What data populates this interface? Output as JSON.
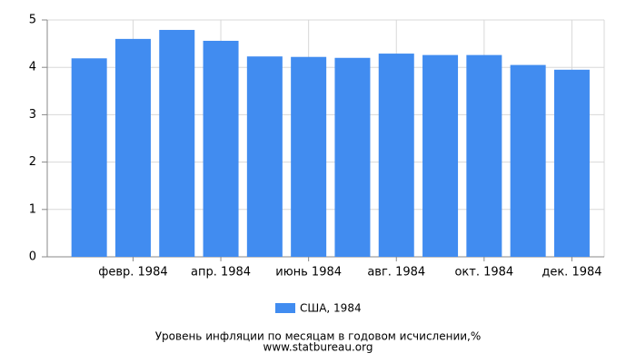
{
  "chart_data": {
    "type": "bar",
    "title": "Уровень инфляции по месяцам в годовом исчислении,%",
    "source": "www.statbureau.org",
    "categories": [
      null,
      "февр. 1984",
      null,
      "апр. 1984",
      null,
      "июнь 1984",
      null,
      "авг. 1984",
      null,
      "окт. 1984",
      null,
      "дек. 1984"
    ],
    "series": [
      {
        "name": "США, 1984",
        "color": "#418cf0",
        "values": [
          4.19,
          4.6,
          4.79,
          4.56,
          4.23,
          4.22,
          4.2,
          4.29,
          4.26,
          4.26,
          4.05,
          3.95
        ]
      }
    ],
    "ylim": [
      0,
      5
    ],
    "yticks": [
      0,
      1,
      2,
      3,
      4,
      5
    ],
    "grid": true
  }
}
